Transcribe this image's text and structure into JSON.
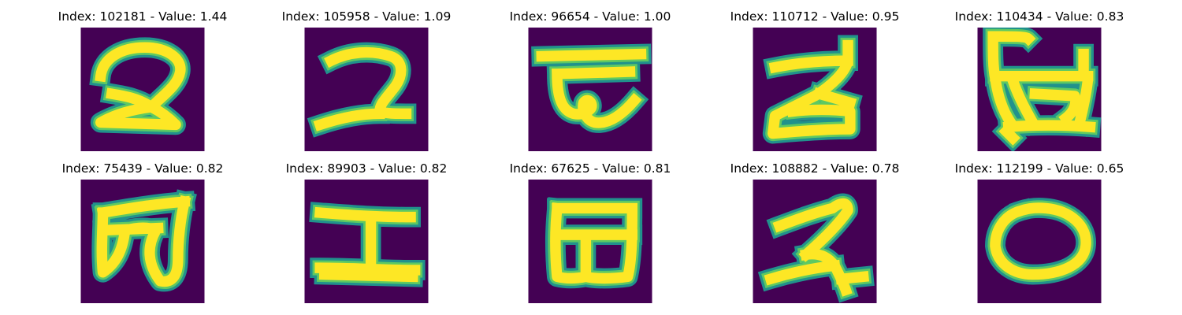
{
  "colors": {
    "background": "#440154",
    "stroke_edge": "#21918c",
    "stroke_mid": "#5ec962",
    "stroke_core": "#fde725"
  },
  "panels": [
    {
      "title": "Index: 102181 - Value: 1.44",
      "glyph": "2"
    },
    {
      "title": "Index: 105958 - Value: 1.09",
      "glyph": "2"
    },
    {
      "title": "Index: 96654 - Value: 1.00",
      "glyph": "symbol-e"
    },
    {
      "title": "Index: 110712 - Value: 0.95",
      "glyph": "2"
    },
    {
      "title": "Index: 110434 - Value: 0.83",
      "glyph": "symbol-box"
    },
    {
      "title": "Index: 75439 - Value: 0.82",
      "glyph": "B"
    },
    {
      "title": "Index: 89903 - Value: 0.82",
      "glyph": "H"
    },
    {
      "title": "Index: 67625 - Value: 0.81",
      "glyph": "B"
    },
    {
      "title": "Index: 108882 - Value: 0.78",
      "glyph": "2"
    },
    {
      "title": "Index: 112199 - Value: 0.65",
      "glyph": "O"
    }
  ]
}
